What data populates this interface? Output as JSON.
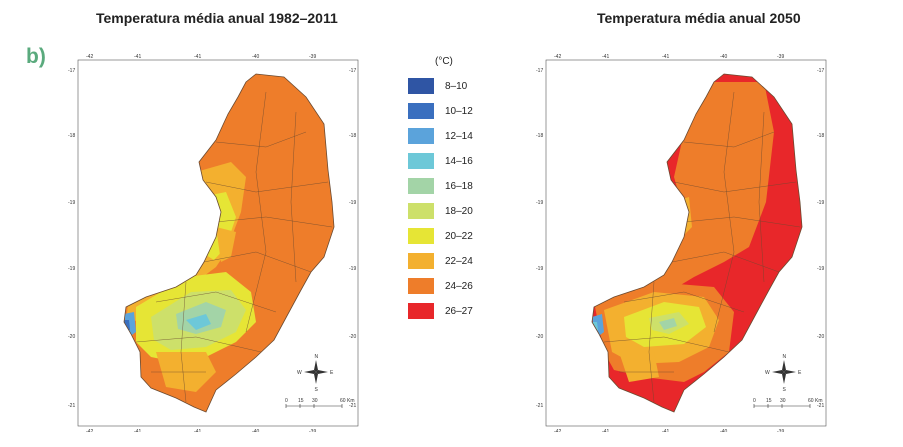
{
  "titles": {
    "left": "Temperatura média anual 1982–2011",
    "right": "Temperatura média anual 2050"
  },
  "panel_label": "b)",
  "legend": {
    "unit": "(°C)",
    "entries": [
      {
        "label": "8–10",
        "color": "#2f55a4"
      },
      {
        "label": "10–12",
        "color": "#3a6fbf"
      },
      {
        "label": "12–14",
        "color": "#5ba3db"
      },
      {
        "label": "14–16",
        "color": "#6dc8d8"
      },
      {
        "label": "16–18",
        "color": "#a3d4a7"
      },
      {
        "label": "18–20",
        "color": "#cde06a"
      },
      {
        "label": "20–22",
        "color": "#e6e535"
      },
      {
        "label": "22–24",
        "color": "#f3b02f"
      },
      {
        "label": "24–26",
        "color": "#ee7d2a"
      },
      {
        "label": "26–27",
        "color": "#e8272a"
      }
    ]
  },
  "axes": {
    "lon_ticks": [
      "-42",
      "-41",
      "-41",
      "-40",
      "-39"
    ],
    "lat_ticks": [
      "-17",
      "-18",
      "-19",
      "-19",
      "-20",
      "-21"
    ]
  },
  "scale_bar": {
    "labels": [
      "0",
      "15",
      "30",
      "60",
      "Km"
    ]
  },
  "compass": {
    "icon": "compass-rose-icon",
    "n": "N",
    "s": "S",
    "e": "E",
    "w": "W"
  }
}
